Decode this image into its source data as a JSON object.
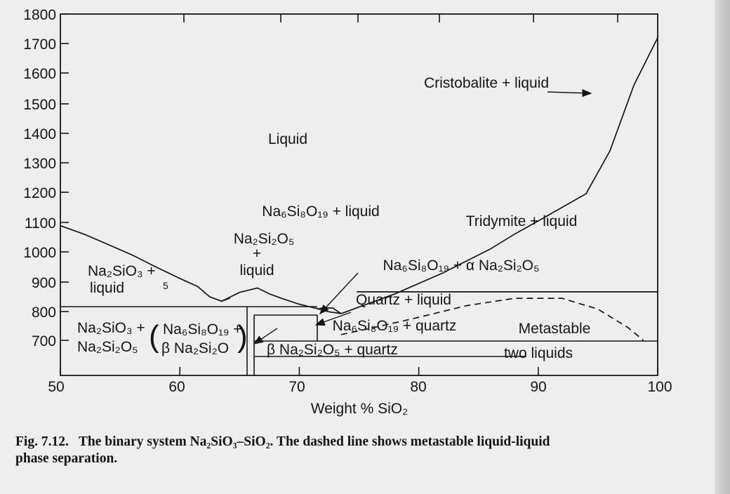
{
  "chart_data": {
    "type": "phase-diagram",
    "title": "",
    "xlabel": "Weight % SiO₂",
    "ylabel": "",
    "xlim": [
      50,
      100
    ],
    "ylim": [
      630,
      1800
    ],
    "x_ticks": [
      "50",
      "60",
      "70",
      "80",
      "90",
      "100"
    ],
    "y_ticks": [
      "700",
      "800",
      "900",
      "1000",
      "1100",
      "1200",
      "1300",
      "1400",
      "1500",
      "1600",
      "1700",
      "1800"
    ],
    "grid": false,
    "regions": [
      {
        "id": "liquid",
        "label": "Liquid"
      },
      {
        "id": "cristobalite",
        "label": "Cristobalite + liquid"
      },
      {
        "id": "tridymite",
        "label": "Tridymite + liquid"
      },
      {
        "id": "ns8-liquid",
        "label": "Na₆Si₈O₁₉ + liquid"
      },
      {
        "id": "ns2-liquid",
        "label": "Na₂Si₂O₅ + liquid"
      },
      {
        "id": "ns-liquid",
        "label": "Na₂SiO₃ + liquid"
      },
      {
        "id": "ns8-alpha-ns2",
        "label": "Na₆Si₈O₁₉ + α Na₂Si₂O₅"
      },
      {
        "id": "quartz-liquid",
        "label": "Quartz + liquid"
      },
      {
        "id": "ns8-quartz",
        "label": "Na₆Si₈O₁₉ + quartz"
      },
      {
        "id": "beta-ns2-quartz",
        "label": "β Na₂Si₂O₅ + quartz"
      },
      {
        "id": "ns-ns2",
        "label": "Na₂SiO₃ + Na₂Si₂O₅"
      },
      {
        "id": "ns8-beta-ns2",
        "label": "Na₆Si₈O₁₉ + β Na₂Si₂O"
      },
      {
        "id": "metastable",
        "label": "Metastable two liquids"
      }
    ],
    "curves": [
      {
        "name": "liquidus-ns",
        "style": "solid",
        "points": [
          [
            50,
            1089
          ],
          [
            52,
            1060
          ],
          [
            54,
            1025
          ],
          [
            56,
            990
          ],
          [
            58,
            950
          ],
          [
            60,
            912
          ],
          [
            61.5,
            885
          ],
          [
            62.5,
            850
          ],
          [
            63.5,
            835
          ],
          [
            64.2,
            846
          ]
        ]
      },
      {
        "name": "liquidus-ns2",
        "style": "solid",
        "points": [
          [
            63.5,
            835
          ],
          [
            65,
            865
          ],
          [
            66.5,
            880
          ],
          [
            67.5,
            860
          ],
          [
            68.5,
            845
          ],
          [
            70,
            825
          ],
          [
            71.5,
            810
          ],
          [
            72.5,
            799
          ],
          [
            73.5,
            793
          ]
        ]
      },
      {
        "name": "liquidus-ns8",
        "style": "solid",
        "points": [
          [
            71.5,
            808
          ],
          [
            72,
            813
          ],
          [
            72.8,
            812
          ],
          [
            73.5,
            793
          ]
        ]
      },
      {
        "name": "liquidus-silica",
        "style": "solid",
        "points": [
          [
            73.5,
            793
          ],
          [
            78,
            860
          ],
          [
            82,
            930
          ],
          [
            86,
            1010
          ],
          [
            88,
            1060
          ],
          [
            90,
            1105
          ],
          [
            94,
            1195
          ],
          [
            96,
            1340
          ],
          [
            98,
            1560
          ],
          [
            100,
            1720
          ]
        ]
      },
      {
        "name": "quartz-tridymite",
        "style": "solid",
        "points": [
          [
            74.8,
            867
          ],
          [
            100,
            867
          ]
        ]
      },
      {
        "name": "metastable-dome",
        "style": "dashed",
        "points": [
          [
            73.5,
            720
          ],
          [
            76,
            742
          ],
          [
            80,
            780
          ],
          [
            84,
            820
          ],
          [
            88,
            845
          ],
          [
            92,
            845
          ],
          [
            95,
            808
          ],
          [
            97.5,
            745
          ],
          [
            98.8,
            700
          ]
        ]
      }
    ]
  },
  "caption": {
    "number": "Fig. 7.12.",
    "text": "The binary system Na₂SiO₃–SiO₂. The dashed line shows metastable liquid-liquid",
    "continuation": "phase separation."
  }
}
